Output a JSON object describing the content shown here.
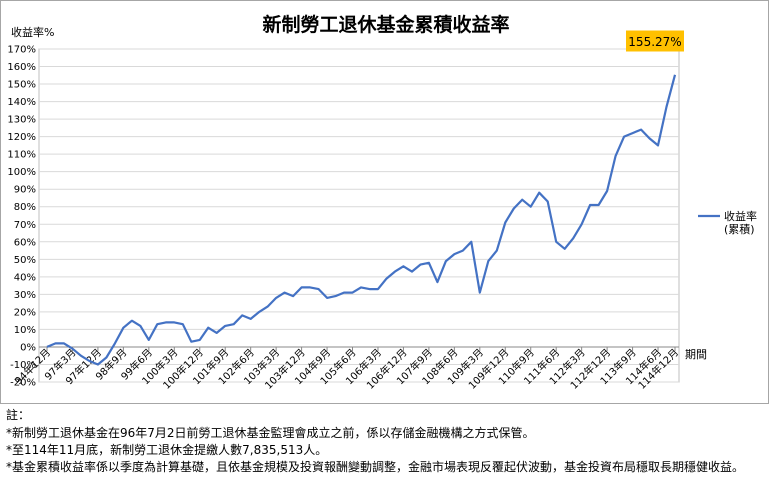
{
  "chart_data": {
    "type": "line",
    "title": "新制勞工退休基金累積收益率",
    "ylabel": "收益率%",
    "xlabel": "期間",
    "ylim": [
      -20,
      170
    ],
    "ytick_step": 10,
    "ytick_suffix": "%",
    "grid": true,
    "legend_position": "right",
    "series": [
      {
        "name": "收益率\n(累積)",
        "color": "#4472c4",
        "values": [
          0,
          2,
          2,
          -1,
          -5,
          -8,
          -10,
          -6,
          2,
          11,
          15,
          12,
          4,
          13,
          14,
          14,
          13,
          3,
          4,
          11,
          8,
          12,
          13,
          18,
          16,
          20,
          23,
          28,
          31,
          29,
          34,
          34,
          33,
          28,
          29,
          31,
          31,
          34,
          33,
          33,
          39,
          43,
          46,
          43,
          47,
          48,
          37,
          49,
          53,
          55,
          60,
          31,
          49,
          55,
          71,
          79,
          84,
          80,
          88,
          83,
          60,
          56,
          62,
          70,
          81,
          81,
          89,
          109,
          120,
          122,
          124,
          119,
          115,
          137,
          155.27
        ]
      }
    ],
    "x_tick_labels": [
      "94年12月",
      "97年3月",
      "97年12月",
      "98年9月",
      "99年6月",
      "100年3月",
      "100年12月",
      "101年9月",
      "102年6月",
      "103年3月",
      "103年12月",
      "104年9月",
      "105年6月",
      "106年3月",
      "106年12月",
      "107年9月",
      "108年6月",
      "109年3月",
      "109年12月",
      "110年9月",
      "111年6月",
      "112年3月",
      "112年12月",
      "113年9月",
      "114年6月",
      "114年12月"
    ],
    "x_tick_positions": [
      0,
      3,
      6,
      9,
      12,
      15,
      18,
      21,
      24,
      27,
      30,
      33,
      36,
      39,
      42,
      45,
      48,
      51,
      54,
      57,
      60,
      63,
      66,
      69,
      72,
      74
    ],
    "annotation": {
      "text": "155.27%",
      "color": "#ffc000"
    }
  },
  "notes": {
    "title": "註：",
    "items": [
      "*新制勞工退休基金在96年7月2日前勞工退休基金監理會成立之前，係以存儲金融機構之方式保管。",
      "*至114年11月底，新制勞工退休金提繳人數7,835,513人。",
      "*基金累積收益率係以季度為計算基礎，且依基金規模及投資報酬變動調整，金融市場表現反覆起伏波動，基金投資布局穩取長期穩健收益。"
    ]
  }
}
